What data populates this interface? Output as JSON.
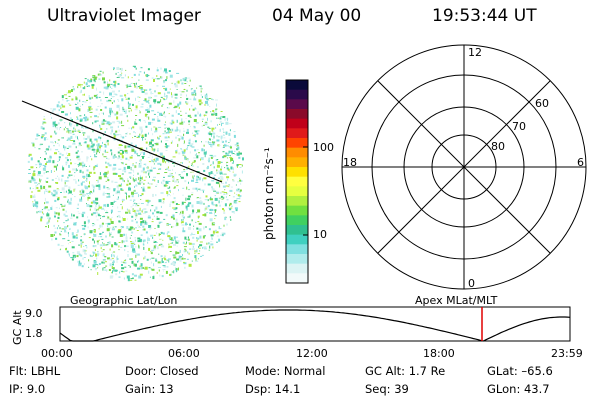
{
  "header": {
    "instrument": "Ultraviolet Imager",
    "date": "04 May 00",
    "time": "19:53:44 UT"
  },
  "colorbar": {
    "label": "photon cm⁻²s⁻¹",
    "tick_labels": [
      "100",
      "10"
    ],
    "colors": [
      "#0a0a3a",
      "#2a0a4a",
      "#5a0a4a",
      "#8a0a2a",
      "#c0001a",
      "#e01a1a",
      "#ff4400",
      "#ff8c00",
      "#ffb000",
      "#ffe000",
      "#ffff40",
      "#e6ff40",
      "#b0f040",
      "#70e040",
      "#40d060",
      "#30c090",
      "#40d0c0",
      "#80e0e0",
      "#b0ecec",
      "#dcf4f4",
      "#f2fafa"
    ]
  },
  "polar_grid": {
    "mlt_labels": [
      "12",
      "18",
      "6",
      "0"
    ],
    "lat_labels": [
      "60",
      "70",
      "80"
    ]
  },
  "orbit": {
    "left_label": "Geographic Lat/Lon",
    "right_label": "Apex MLat/MLT",
    "y_axis_label": "GC Alt",
    "y_ticks": [
      "9.0",
      "1.8"
    ],
    "x_ticks": [
      "00:00",
      "06:00",
      "12:00",
      "18:00",
      "23:59"
    ],
    "marker_color": "#e00000"
  },
  "info": {
    "row1": {
      "flt": "Flt: LBHL",
      "door": "Door: Closed",
      "mode": "Mode: Normal",
      "gc_alt": "GC Alt: 1.7 Re",
      "glat": "GLat: –65.6"
    },
    "row2": {
      "ip": "IP:  9.0",
      "gain": "Gain: 13",
      "dsp": "Dsp:   14.1",
      "seq": "Seq: 39",
      "glon": "GLon:  43.7"
    }
  }
}
